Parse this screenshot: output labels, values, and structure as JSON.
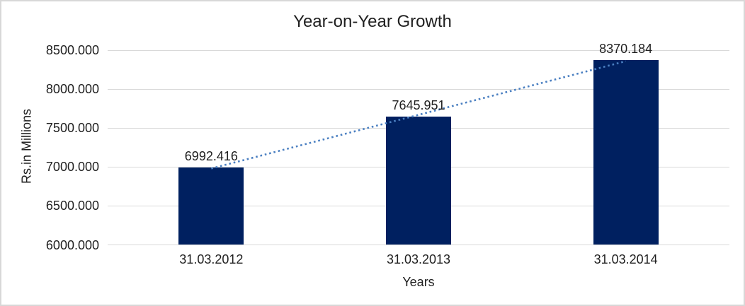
{
  "chart_data": {
    "type": "bar",
    "title": "Year-on-Year Growth",
    "xlabel": "Years",
    "ylabel": "Rs.in Millions",
    "categories": [
      "31.03.2012",
      "31.03.2013",
      "31.03.2014"
    ],
    "values": [
      6992.416,
      7645.951,
      8370.184
    ],
    "data_labels": [
      "6992.416",
      "7645.951",
      "8370.184"
    ],
    "ylim": [
      6000,
      8500
    ],
    "ytick_step": 500,
    "ytick_labels": [
      "6000.000",
      "6500.000",
      "7000.000",
      "7500.000",
      "8000.000",
      "8500.000"
    ],
    "grid": true,
    "legend": "none",
    "trendline": {
      "type": "linear",
      "style": "dotted"
    },
    "colors": {
      "bar": "#002060",
      "trendline": "#4a7fc1",
      "gridline": "#d9d9d9",
      "text": "#1f1f1f",
      "border": "#d8d8d8",
      "background": "#ffffff"
    }
  }
}
